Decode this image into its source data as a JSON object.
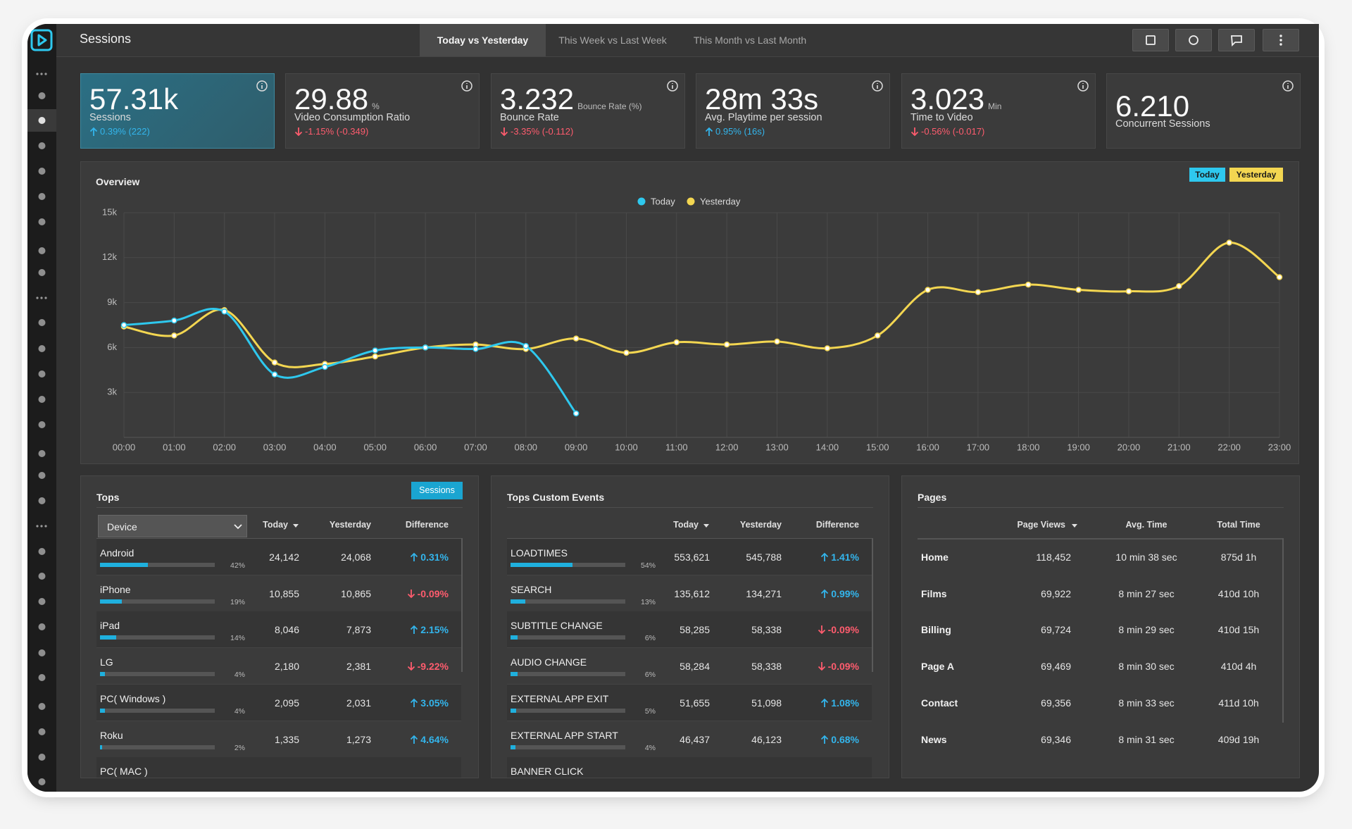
{
  "header": {
    "title": "Sessions",
    "tabs": [
      "Today vs Yesterday",
      "This Week vs Last Week",
      "This Month vs Last Month"
    ],
    "active_tab": 0
  },
  "kpis": [
    {
      "value": "57.31k",
      "label": "Sessions",
      "change": "0.39% (222)",
      "highlight": true
    },
    {
      "value": "29.88",
      "unit": "%",
      "label": "Video Consumption Ratio",
      "change": "-1.15% (-0.349)"
    },
    {
      "value": "3.232",
      "unit": "Bounce Rate (%)",
      "label": "Bounce Rate",
      "change": "-3.35% (-0.112)"
    },
    {
      "value": "28m 33s",
      "label": "Avg. Playtime per session",
      "change": "0.95% (16s)"
    },
    {
      "value": "3.023",
      "unit": "Min",
      "label": "Time to Video",
      "change": "-0.56% (-0.017)"
    },
    {
      "value": "6.210",
      "label": "Concurrent Sessions"
    }
  ],
  "chart_data": {
    "type": "line",
    "title": "Overview",
    "categories": [
      "00:00",
      "01:00",
      "02:00",
      "03:00",
      "04:00",
      "05:00",
      "06:00",
      "07:00",
      "08:00",
      "09:00",
      "10:00",
      "11:00",
      "12:00",
      "13:00",
      "14:00",
      "15:00",
      "16:00",
      "17:00",
      "18:00",
      "19:00",
      "20:00",
      "21:00",
      "22:00",
      "23:00"
    ],
    "series": [
      {
        "name": "Today",
        "color": "#2ec8ee",
        "values": [
          7500,
          7800,
          8400,
          4200,
          4700,
          5800,
          6000,
          5900,
          6100,
          1600,
          null,
          null,
          null,
          null,
          null,
          null,
          null,
          null,
          null,
          null,
          null,
          null,
          null,
          null
        ]
      },
      {
        "name": "Yesterday",
        "color": "#f3d651",
        "values": [
          7400,
          6800,
          8500,
          5000,
          4900,
          5400,
          6000,
          6200,
          5900,
          6600,
          5650,
          6350,
          6200,
          6400,
          5950,
          6800,
          9850,
          9700,
          10200,
          9850,
          9750,
          10100,
          13000,
          10700
        ]
      }
    ],
    "ylim": [
      0,
      15000
    ],
    "yticks": [
      {
        "value": 3000,
        "label": "3k"
      },
      {
        "value": 6000,
        "label": "6k"
      },
      {
        "value": 9000,
        "label": "9k"
      },
      {
        "value": 12000,
        "label": "12k"
      },
      {
        "value": 15000,
        "label": "15k"
      }
    ],
    "grid": true,
    "legend": "top"
  },
  "tops": {
    "title": "Tops",
    "button": "Sessions",
    "dimension": "Device",
    "columns": [
      "Today",
      "Yesterday",
      "Difference"
    ],
    "rows": [
      {
        "name": "Android",
        "share": 42,
        "share_label": "42%",
        "today": "24,142",
        "yesterday": "24,068",
        "difference": "0.31%"
      },
      {
        "name": "iPhone",
        "share": 19,
        "share_label": "19%",
        "today": "10,855",
        "yesterday": "10,865",
        "difference": "-0.09%"
      },
      {
        "name": "iPad",
        "share": 14,
        "share_label": "14%",
        "today": "8,046",
        "yesterday": "7,873",
        "difference": "2.15%"
      },
      {
        "name": "LG",
        "share": 4,
        "share_label": "4%",
        "today": "2,180",
        "yesterday": "2,381",
        "difference": "-9.22%"
      },
      {
        "name": "PC( Windows )",
        "share": 4,
        "share_label": "4%",
        "today": "2,095",
        "yesterday": "2,031",
        "difference": "3.05%"
      },
      {
        "name": "Roku",
        "share": 2,
        "share_label": "2%",
        "today": "1,335",
        "yesterday": "1,273",
        "difference": "4.64%"
      },
      {
        "name": "PC( MAC )"
      }
    ]
  },
  "custom_events": {
    "title": "Tops Custom Events",
    "columns": [
      "Today",
      "Yesterday",
      "Difference"
    ],
    "rows": [
      {
        "name": "LOADTIMES",
        "share": 54,
        "share_label": "54%",
        "today": "553,621",
        "yesterday": "545,788",
        "difference": "1.41%"
      },
      {
        "name": "SEARCH",
        "share": 13,
        "share_label": "13%",
        "today": "135,612",
        "yesterday": "134,271",
        "difference": "0.99%"
      },
      {
        "name": "SUBTITLE CHANGE",
        "share": 6,
        "share_label": "6%",
        "today": "58,285",
        "yesterday": "58,338",
        "difference": "-0.09%"
      },
      {
        "name": "AUDIO CHANGE",
        "share": 6,
        "share_label": "6%",
        "today": "58,284",
        "yesterday": "58,338",
        "difference": "-0.09%"
      },
      {
        "name": "EXTERNAL APP EXIT",
        "share": 5,
        "share_label": "5%",
        "today": "51,655",
        "yesterday": "51,098",
        "difference": "1.08%"
      },
      {
        "name": "EXTERNAL APP START",
        "share": 4,
        "share_label": "4%",
        "today": "46,437",
        "yesterday": "46,123",
        "difference": "0.68%"
      },
      {
        "name": "BANNER CLICK"
      }
    ]
  },
  "pages": {
    "title": "Pages",
    "columns": [
      "Page Views",
      "Avg. Time",
      "Total Time"
    ],
    "rows": [
      [
        "Home",
        "118,452",
        "10 min 38 sec",
        "875d 1h"
      ],
      [
        "Films",
        "69,922",
        "8 min 27 sec",
        "410d 10h"
      ],
      [
        "Billing",
        "69,724",
        "8 min 29 sec",
        "410d 15h"
      ],
      [
        "Page A",
        "69,469",
        "8 min 30 sec",
        "410d 4h"
      ],
      [
        "Contact",
        "69,356",
        "8 min 33 sec",
        "411d 10h"
      ],
      [
        "News",
        "69,346",
        "8 min 31 sec",
        "409d 19h"
      ]
    ]
  }
}
